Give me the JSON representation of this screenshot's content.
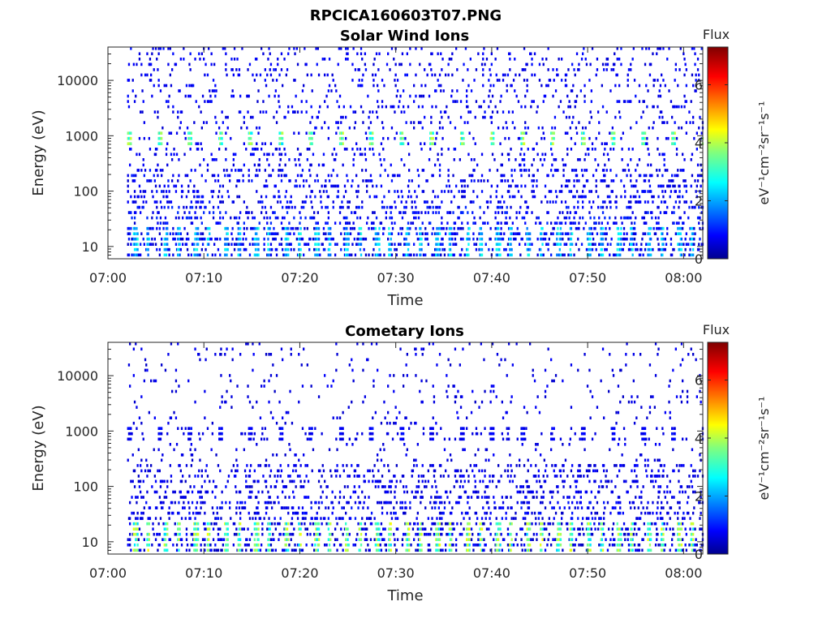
{
  "figure": {
    "title": "RPCICA160603T07.PNG"
  },
  "colors": {
    "background": "#ffffff",
    "axis": "#262626"
  },
  "chart_data": [
    {
      "type": "heatmap",
      "title": "Solar Wind Ions",
      "xlabel": "Time",
      "ylabel": "Energy (eV)",
      "y_scale": "log",
      "ylim": [
        6,
        40000
      ],
      "xlim_minutes": [
        0,
        62
      ],
      "x_tick_labels": [
        "07:00",
        "07:10",
        "07:20",
        "07:30",
        "07:40",
        "07:50",
        "08:00"
      ],
      "x_tick_minutes": [
        0,
        10,
        20,
        30,
        40,
        50,
        60
      ],
      "y_tick_labels": [
        "10",
        "100",
        "1000",
        "10000"
      ],
      "y_tick_values": [
        10,
        100,
        1000,
        10000
      ],
      "colorbar": {
        "label_top": "Flux",
        "label": "eV⁻¹cm⁻²sr⁻¹s⁻¹",
        "ticks": [
          "0",
          "2",
          "4",
          "6"
        ],
        "tick_values": [
          0,
          2,
          4,
          6
        ],
        "range": [
          0,
          7.3
        ],
        "colormap": "jet"
      },
      "data_start_minute": 2,
      "scan_period_minutes": 3.15,
      "peak_energy_eV": 800,
      "peak_flux": 3.6,
      "low_energy_flux_max": 3.0,
      "sparse_flux_typical": 0.8
    },
    {
      "type": "heatmap",
      "title": "Cometary Ions",
      "xlabel": "Time",
      "ylabel": "Energy (eV)",
      "y_scale": "log",
      "ylim": [
        6,
        40000
      ],
      "xlim_minutes": [
        0,
        62
      ],
      "x_tick_labels": [
        "07:00",
        "07:10",
        "07:20",
        "07:30",
        "07:40",
        "07:50",
        "08:00"
      ],
      "x_tick_minutes": [
        0,
        10,
        20,
        30,
        40,
        50,
        60
      ],
      "y_tick_labels": [
        "10",
        "100",
        "1000",
        "10000"
      ],
      "y_tick_values": [
        10,
        100,
        1000,
        10000
      ],
      "colorbar": {
        "label_top": "Flux",
        "label": "eV⁻¹cm⁻²sr⁻¹s⁻¹",
        "ticks": [
          "0",
          "2",
          "4",
          "6"
        ],
        "tick_values": [
          0,
          2,
          4,
          6
        ],
        "range": [
          0,
          7.3
        ],
        "colormap": "jet"
      },
      "data_start_minute": 2,
      "scan_period_minutes": 3.15,
      "peak_energy_eV": 800,
      "peak_flux": 0.9,
      "low_energy_flux_max": 4.6,
      "sparse_flux_typical": 0.7
    }
  ]
}
